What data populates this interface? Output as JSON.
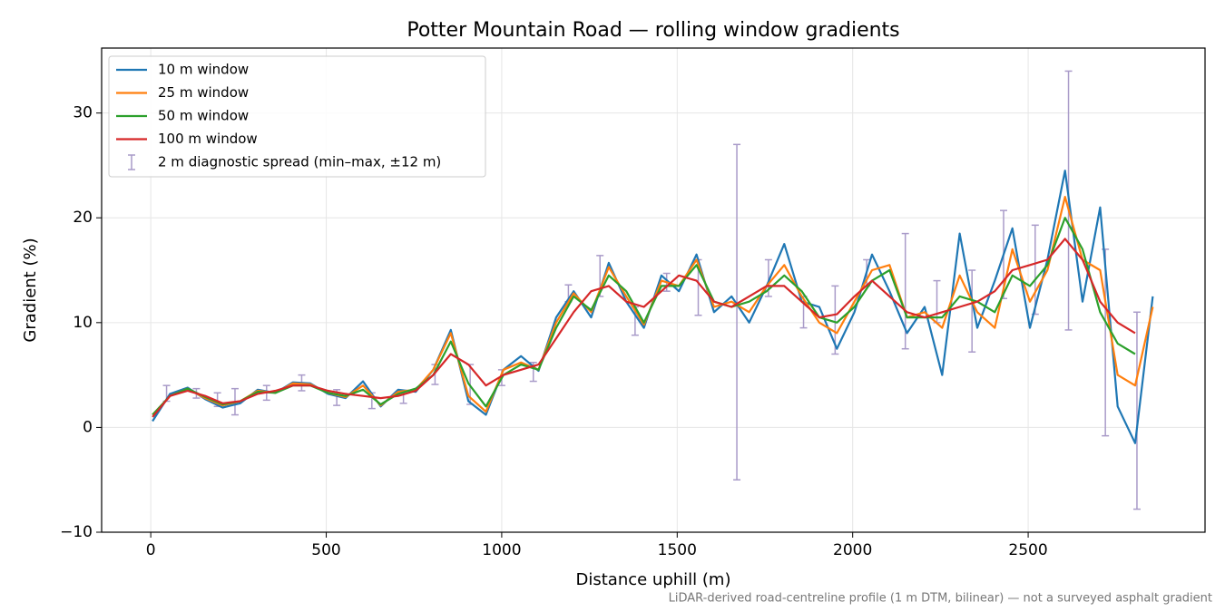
{
  "chart_data": {
    "type": "line",
    "title": "Potter Mountain Road — rolling window gradients",
    "x_label": "Distance uphill (m)",
    "y_label": "Gradient (%)",
    "footnote": "LiDAR-derived road-centreline profile (1 m DTM, bilinear) — not a surveyed asphalt gradient",
    "xlim": [
      -140,
      3004
    ],
    "ylim": [
      -10,
      36.2
    ],
    "xticks": [
      0,
      500,
      1000,
      1500,
      2000,
      2500
    ],
    "yticks": [
      {
        "value": -10,
        "label": "−10"
      },
      0,
      10,
      20,
      30
    ],
    "grid": true,
    "legend": "upper left",
    "x": [
      5,
      55,
      105,
      155,
      205,
      255,
      305,
      355,
      405,
      455,
      505,
      555,
      605,
      655,
      705,
      755,
      805,
      855,
      905,
      955,
      1005,
      1055,
      1105,
      1155,
      1205,
      1255,
      1305,
      1355,
      1405,
      1455,
      1505,
      1555,
      1605,
      1655,
      1705,
      1755,
      1805,
      1855,
      1905,
      1955,
      2005,
      2055,
      2105,
      2155,
      2205,
      2255,
      2305,
      2355,
      2405,
      2455,
      2505,
      2555,
      2605,
      2655,
      2705,
      2755,
      2805,
      2855
    ],
    "series": [
      {
        "name": "10 m window",
        "color": "#1f77b4",
        "values": [
          0.6,
          3.2,
          3.8,
          2.7,
          1.9,
          2.3,
          3.6,
          3.3,
          4.3,
          4.2,
          3.2,
          2.8,
          4.4,
          2,
          3.6,
          3.4,
          5.5,
          9.3,
          2.5,
          1.2,
          5.5,
          6.8,
          5.4,
          10.5,
          13,
          10.5,
          15.7,
          12,
          9.5,
          14.5,
          13,
          16.5,
          11,
          12.5,
          10,
          13.5,
          17.5,
          12,
          11.5,
          7.5,
          11,
          16.5,
          13,
          9,
          11.5,
          5,
          18.5,
          9.5,
          14,
          19,
          9.5,
          16,
          24.5,
          12,
          21,
          2,
          -1.5,
          12.5
        ]
      },
      {
        "name": "25 m window",
        "color": "#ff7f0e",
        "values": [
          1.2,
          3,
          3.7,
          2.8,
          2.1,
          2.5,
          3.5,
          3.3,
          4.2,
          4.1,
          3.3,
          2.9,
          4,
          2.1,
          3.4,
          3.6,
          5.5,
          9,
          3,
          1.5,
          5.5,
          6.2,
          5.5,
          10,
          12.8,
          11,
          15.3,
          12.5,
          9.8,
          14,
          13.5,
          16,
          11.5,
          12,
          11,
          13.5,
          15.5,
          12.5,
          10,
          9,
          12,
          15,
          15.5,
          10.5,
          11,
          9.5,
          14.5,
          11,
          9.5,
          17,
          12,
          15,
          22,
          16,
          15,
          5,
          4,
          11.5
        ]
      },
      {
        "name": "50 m window",
        "color": "#2ca02c",
        "values": [
          1.2,
          3,
          3.7,
          2.9,
          2.2,
          2.5,
          3.4,
          3.3,
          4,
          4,
          3.3,
          3,
          3.6,
          2.2,
          3.2,
          3.7,
          5,
          8.2,
          4.2,
          2,
          5,
          6,
          5.5,
          9.5,
          12.5,
          11.2,
          14.5,
          13,
          10,
          13.5,
          13.5,
          15.5,
          12,
          11.5,
          12,
          13,
          14.5,
          13,
          10.5,
          10,
          11.5,
          14,
          15,
          10.5,
          10.5,
          10.5,
          12.5,
          12,
          11,
          14.5,
          13.5,
          15.5,
          20,
          17,
          11,
          8,
          7,
          null
        ]
      },
      {
        "name": "100 m window",
        "color": "#d62728",
        "values": [
          1,
          3,
          3.5,
          3,
          2.3,
          2.5,
          3.2,
          3.5,
          4,
          4,
          3.5,
          3.2,
          3,
          2.8,
          3,
          3.5,
          5,
          7,
          6,
          4,
          5,
          5.5,
          6,
          8.5,
          11,
          13,
          13.5,
          12,
          11.5,
          13,
          14.5,
          14,
          12,
          11.5,
          12.5,
          13.5,
          13.5,
          12,
          10.5,
          10.8,
          12.5,
          14,
          12.5,
          11,
          10.5,
          11,
          11.5,
          12,
          13,
          15,
          15.5,
          16,
          18,
          16,
          12,
          10,
          9,
          null
        ]
      }
    ],
    "errorbars": {
      "name": "2 m diagnostic spread (min–max, ±12 m)",
      "color": "#a99bc9",
      "x": [
        45,
        130,
        190,
        240,
        330,
        430,
        530,
        630,
        720,
        810,
        910,
        1000,
        1090,
        1190,
        1280,
        1380,
        1470,
        1560,
        1670,
        1760,
        1860,
        1950,
        2040,
        2150,
        2240,
        2340,
        2430,
        2520,
        2615,
        2720,
        2810
      ],
      "low": [
        2.5,
        2.8,
        2,
        1.2,
        2.6,
        3.5,
        2.1,
        1.8,
        2.3,
        4.1,
        2.2,
        4,
        4.4,
        12,
        12.5,
        8.8,
        13,
        10.7,
        -5,
        12.5,
        9.5,
        7,
        13.5,
        7.5,
        10,
        7.2,
        12.3,
        10.8,
        9.3,
        -0.8,
        -7.8
      ],
      "high": [
        4,
        3.7,
        3.3,
        3.7,
        4,
        5,
        3.6,
        3.3,
        3.5,
        6,
        6,
        5.5,
        6.2,
        13.6,
        16.4,
        11.5,
        14.7,
        16,
        27,
        16,
        12.5,
        13.5,
        16,
        18.5,
        14,
        15,
        20.7,
        19.3,
        34,
        17,
        11
      ]
    }
  }
}
